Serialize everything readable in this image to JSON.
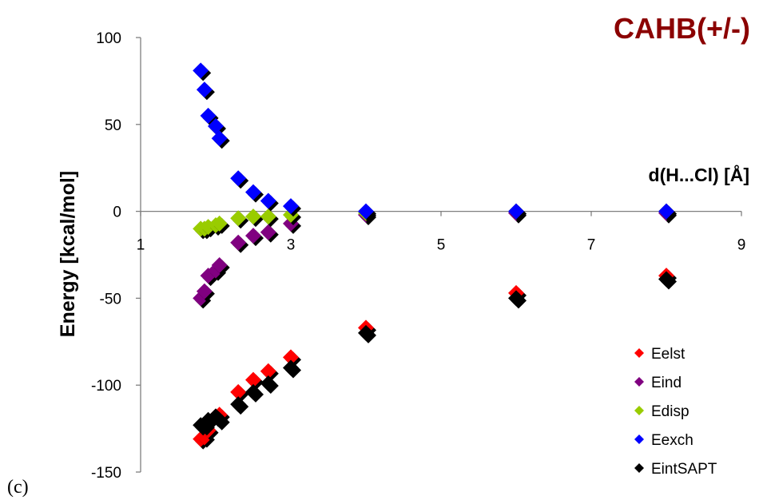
{
  "panel_label": "(c)",
  "chart_data": {
    "type": "scatter",
    "title": "CAHB(+/-)",
    "xlabel": "d(H...Cl) [Å]",
    "ylabel": "Energy [kcal/mol]",
    "xlim": [
      1,
      9
    ],
    "ylim": [
      -150,
      100
    ],
    "x_ticks": [
      "1",
      "3",
      "5",
      "7",
      "9"
    ],
    "y_ticks": [
      "100",
      "50",
      "0",
      "-50",
      "-100",
      "-150"
    ],
    "grid": false,
    "legend_position": "bottom-right",
    "x": [
      1.8,
      1.85,
      1.9,
      2.0,
      2.05,
      2.3,
      2.5,
      2.7,
      3.0,
      4.0,
      6.0,
      8.0
    ],
    "series": [
      {
        "name": "Eelst",
        "color": "#ff0000",
        "values": [
          -131,
          -130,
          -126,
          -118,
          -117,
          -104,
          -97,
          -92,
          -84,
          -67,
          -47,
          -37
        ]
      },
      {
        "name": "Eind",
        "color": "#800080",
        "values": [
          -50,
          -46,
          -37,
          -34,
          -31,
          -18,
          -14,
          -12,
          -7,
          -2,
          -1,
          -1
        ]
      },
      {
        "name": "Edisp",
        "color": "#99cc00",
        "values": [
          -10,
          -10,
          -9,
          -8,
          -7,
          -4,
          -3,
          -3,
          -2,
          -1,
          0,
          0
        ]
      },
      {
        "name": "Eexch",
        "color": "#0000ff",
        "values": [
          81,
          70,
          55,
          49,
          42,
          19,
          11,
          6,
          3,
          0,
          0,
          0
        ]
      },
      {
        "name": "EintSAPT",
        "color": "#000000",
        "values": [
          -123,
          -123,
          -120,
          -118,
          -120,
          -111,
          -104,
          -99,
          -90,
          -70,
          -50,
          -39
        ]
      }
    ]
  }
}
